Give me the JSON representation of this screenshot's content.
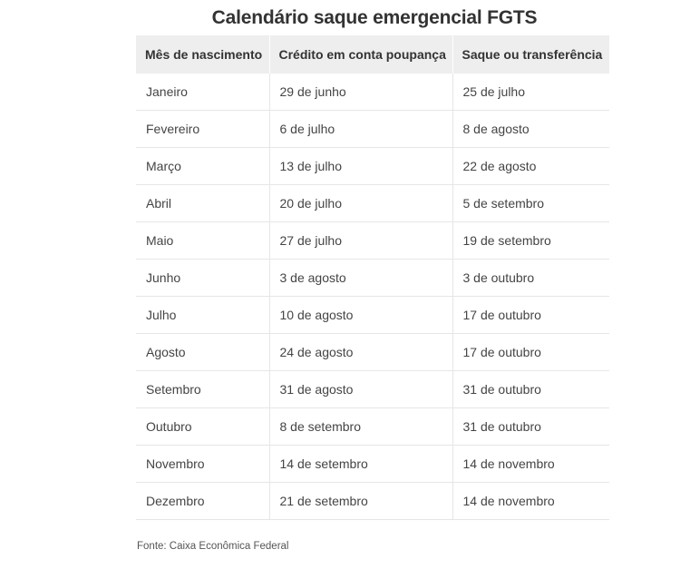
{
  "title": "Calendário saque emergencial FGTS",
  "table": {
    "headers": [
      "Mês de nascimento",
      "Crédito em conta poupança",
      "Saque ou transferência"
    ],
    "rows": [
      [
        "Janeiro",
        "29 de junho",
        "25 de julho"
      ],
      [
        "Fevereiro",
        "6 de julho",
        "8 de agosto"
      ],
      [
        "Março",
        "13 de julho",
        "22 de agosto"
      ],
      [
        "Abril",
        "20 de julho",
        "5 de setembro"
      ],
      [
        "Maio",
        "27 de julho",
        "19 de setembro"
      ],
      [
        "Junho",
        "3 de agosto",
        "3 de outubro"
      ],
      [
        "Julho",
        "10 de agosto",
        "17 de outubro"
      ],
      [
        "Agosto",
        "24 de agosto",
        "17 de outubro"
      ],
      [
        "Setembro",
        "31 de agosto",
        "31 de outubro"
      ],
      [
        "Outubro",
        "8 de setembro",
        "31 de outubro"
      ],
      [
        "Novembro",
        "14 de setembro",
        "14 de novembro"
      ],
      [
        "Dezembro",
        "21 de setembro",
        "14 de novembro"
      ]
    ]
  },
  "source": "Fonte: Caixa Econômica Federal"
}
